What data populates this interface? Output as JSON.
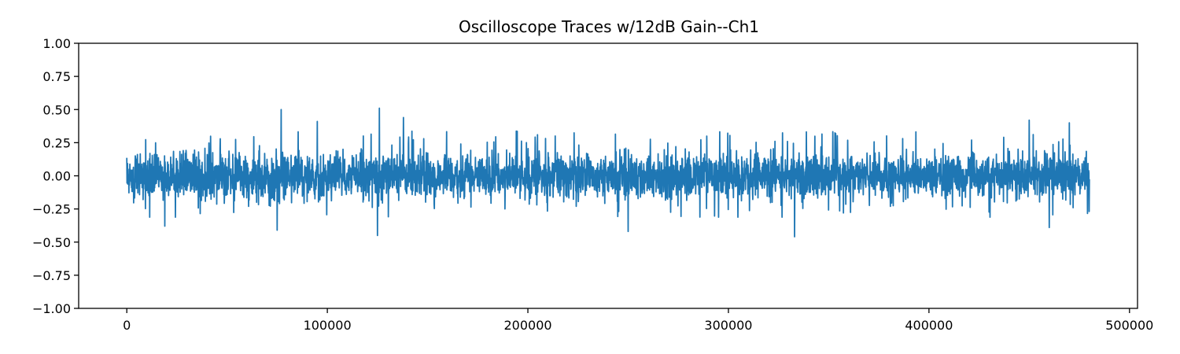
{
  "chart_data": {
    "type": "line",
    "title": "Oscilloscope Traces w/12dB Gain--Ch1",
    "xlabel": "",
    "ylabel": "",
    "xlim": [
      -24000,
      504000
    ],
    "ylim": [
      -1.0,
      1.0
    ],
    "x_ticks": [
      0,
      100000,
      200000,
      300000,
      400000,
      500000
    ],
    "x_tick_labels": [
      "0",
      "100000",
      "200000",
      "300000",
      "400000",
      "500000"
    ],
    "y_ticks": [
      1.0,
      0.75,
      0.5,
      0.25,
      0.0,
      -0.25,
      -0.5,
      -0.75,
      -1.0
    ],
    "y_tick_labels": [
      "1.00",
      "0.75",
      "0.50",
      "0.25",
      "0.00",
      "−0.25",
      "−0.50",
      "−0.75",
      "−1.00"
    ],
    "grid": false,
    "series": [
      {
        "color": "#1f77b4",
        "x_start": 0,
        "x_end": 480000,
        "typical_envelope": [
          -0.25,
          0.25
        ],
        "max": 0.51,
        "min": -0.46,
        "peaks": [
          {
            "x": 77000,
            "y": 0.5
          },
          {
            "x": 95000,
            "y": 0.41
          },
          {
            "x": 126000,
            "y": 0.51
          },
          {
            "x": 138000,
            "y": 0.44
          },
          {
            "x": 450000,
            "y": 0.42
          },
          {
            "x": 470000,
            "y": 0.4
          }
        ],
        "troughs": [
          {
            "x": 19000,
            "y": -0.38
          },
          {
            "x": 75000,
            "y": -0.41
          },
          {
            "x": 125000,
            "y": -0.45
          },
          {
            "x": 250000,
            "y": -0.42
          },
          {
            "x": 333000,
            "y": -0.46
          },
          {
            "x": 460000,
            "y": -0.39
          }
        ]
      }
    ]
  }
}
